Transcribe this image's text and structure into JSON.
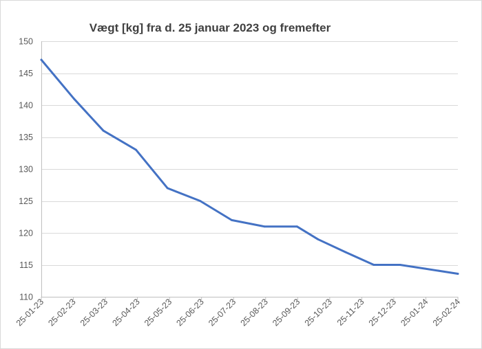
{
  "chart_data": {
    "type": "line",
    "title": "Vægt [kg] fra d. 25 januar 2023 og fremefter",
    "xlabel": "",
    "ylabel": "",
    "ylim": [
      110,
      150
    ],
    "yticks": [
      110,
      115,
      120,
      125,
      130,
      135,
      140,
      145,
      150
    ],
    "xticks": [
      "25-01-23",
      "25-02-23",
      "25-03-23",
      "25-04-23",
      "25-05-23",
      "25-06-23",
      "25-07-23",
      "25-08-23",
      "25-09-23",
      "25-10-23",
      "25-11-23",
      "25-12-23",
      "25-01-24",
      "25-02-24"
    ],
    "xlim": [
      "2023-01-25",
      "2024-02-25"
    ],
    "grid": true,
    "legend": "none",
    "line_color": "#4472c4",
    "series": [
      {
        "points": [
          {
            "x": "2023-01-25",
            "y": 147.1
          },
          {
            "x": "2023-02-25",
            "y": 141.0
          },
          {
            "x": "2023-03-25",
            "y": 136.0
          },
          {
            "x": "2023-04-25",
            "y": 133.0
          },
          {
            "x": "2023-05-25",
            "y": 127.0
          },
          {
            "x": "2023-06-25",
            "y": 125.0
          },
          {
            "x": "2023-07-25",
            "y": 122.0
          },
          {
            "x": "2023-08-25",
            "y": 121.0
          },
          {
            "x": "2023-09-25",
            "y": 121.0
          },
          {
            "x": "2023-10-15",
            "y": 119.0
          },
          {
            "x": "2023-11-10",
            "y": 117.0
          },
          {
            "x": "2023-12-07",
            "y": 115.0
          },
          {
            "x": "2024-01-01",
            "y": 115.0
          },
          {
            "x": "2024-01-25",
            "y": 114.4
          },
          {
            "x": "2024-02-25",
            "y": 113.6
          }
        ]
      }
    ]
  }
}
